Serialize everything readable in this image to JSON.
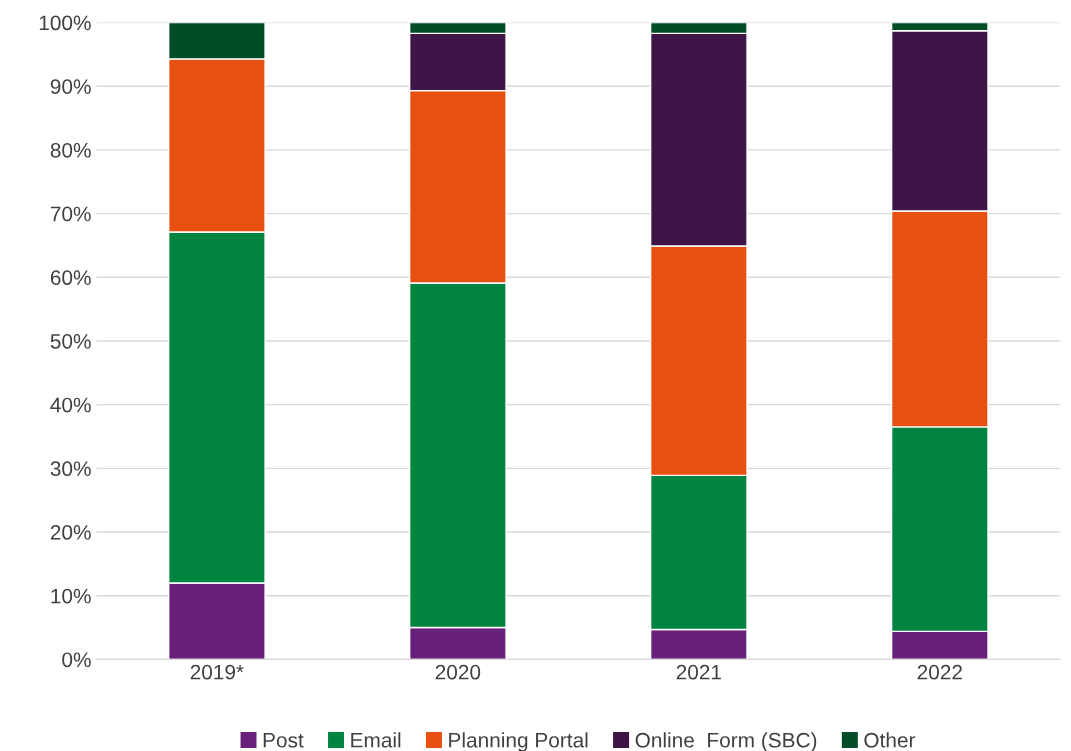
{
  "chart_data": {
    "type": "bar",
    "stacked": true,
    "categories": [
      "2019*",
      "2020",
      "2021",
      "2022"
    ],
    "series": [
      {
        "name": "Post",
        "color": "#68217a",
        "values": [
          12.0,
          5.0,
          4.7,
          4.4
        ]
      },
      {
        "name": "Email",
        "color": "#00843f",
        "values": [
          55.1,
          54.1,
          24.2,
          32.1
        ]
      },
      {
        "name": "Planning Portal",
        "color": "#e85012",
        "values": [
          27.2,
          30.2,
          36.0,
          33.9
        ]
      },
      {
        "name": "Online  Form (SBC)",
        "color": "#3f1548",
        "values": [
          0,
          9.0,
          33.4,
          28.3
        ]
      },
      {
        "name": "Other",
        "color": "#004d26",
        "values": [
          5.7,
          1.7,
          1.7,
          1.3
        ]
      }
    ],
    "ylim": [
      0,
      100
    ],
    "yticks": [
      {
        "value": 0,
        "label": "0%"
      },
      {
        "value": 10,
        "label": "10%"
      },
      {
        "value": 20,
        "label": "20%"
      },
      {
        "value": 30,
        "label": "30%"
      },
      {
        "value": 40,
        "label": "40%"
      },
      {
        "value": 50,
        "label": "50%"
      },
      {
        "value": 60,
        "label": "60%"
      },
      {
        "value": 70,
        "label": "70%"
      },
      {
        "value": 80,
        "label": "80%"
      },
      {
        "value": 90,
        "label": "90%"
      },
      {
        "value": 100,
        "label": "100%"
      }
    ],
    "grid": "y",
    "legend": "bottom"
  }
}
